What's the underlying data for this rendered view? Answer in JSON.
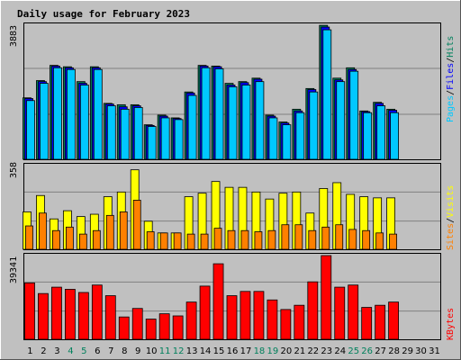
{
  "page": {
    "title": "Daily usage for February 2023"
  },
  "colors": {
    "title": "#0000cc",
    "hits": "#00805c",
    "files": "#0000ff",
    "pages": "#00c8ff",
    "visits": "#ffff00",
    "sites": "#ff8000",
    "kbytes": "#ff0000",
    "plot_bg": "#c0c0c0",
    "weekend_day": "#00805c",
    "weekday": "#000000"
  },
  "legend": {
    "top": [
      "Pages",
      "/",
      "Files",
      "/",
      "Hits"
    ],
    "middle": [
      "Sites",
      "/",
      "Visits"
    ],
    "bottom": [
      "KBytes"
    ]
  },
  "chart_data": [
    {
      "type": "bar",
      "title": "Daily usage for February 2023",
      "ymax_label": "3883",
      "ylim": [
        0,
        3883
      ],
      "categories": [
        "1",
        "2",
        "3",
        "4",
        "5",
        "6",
        "7",
        "8",
        "9",
        "10",
        "11",
        "12",
        "13",
        "14",
        "15",
        "16",
        "17",
        "18",
        "19",
        "20",
        "21",
        "22",
        "23",
        "24",
        "25",
        "26",
        "27",
        "28",
        "29",
        "30",
        "31"
      ],
      "series": [
        {
          "name": "Hits",
          "values": [
            1780,
            2280,
            2720,
            2680,
            2250,
            2680,
            1620,
            1580,
            1580,
            1000,
            1280,
            1200,
            1950,
            2720,
            2700,
            2200,
            2250,
            2350,
            1280,
            1080,
            1450,
            2050,
            3880,
            2350,
            2650,
            1400,
            1650,
            1450,
            null,
            null,
            null
          ]
        },
        {
          "name": "Files",
          "values": [
            1760,
            2250,
            2700,
            2650,
            2200,
            2650,
            1600,
            1520,
            1550,
            980,
            1250,
            1180,
            1920,
            2700,
            2680,
            2150,
            2220,
            2320,
            1250,
            1050,
            1400,
            2020,
            3830,
            2300,
            2600,
            1380,
            1620,
            1420,
            null,
            null,
            null
          ]
        },
        {
          "name": "Pages",
          "values": [
            1700,
            2200,
            2650,
            2600,
            2150,
            2600,
            1550,
            1450,
            1500,
            950,
            1200,
            1150,
            1850,
            2650,
            2620,
            2100,
            2150,
            2250,
            1200,
            1000,
            1350,
            1950,
            3750,
            2250,
            2550,
            1350,
            1550,
            1350,
            null,
            null,
            null
          ]
        }
      ]
    },
    {
      "type": "bar",
      "ymax_label": "358",
      "ylim": [
        0,
        358
      ],
      "categories": [
        "1",
        "2",
        "3",
        "4",
        "5",
        "6",
        "7",
        "8",
        "9",
        "10",
        "11",
        "12",
        "13",
        "14",
        "15",
        "16",
        "17",
        "18",
        "19",
        "20",
        "21",
        "22",
        "23",
        "24",
        "25",
        "26",
        "27",
        "28",
        "29",
        "30",
        "31"
      ],
      "series": [
        {
          "name": "Visits",
          "values": [
            160,
            230,
            130,
            165,
            140,
            150,
            225,
            245,
            340,
            120,
            70,
            70,
            225,
            240,
            290,
            265,
            265,
            245,
            215,
            240,
            245,
            155,
            260,
            285,
            235,
            225,
            220,
            220,
            null,
            null,
            null
          ]
        },
        {
          "name": "Sites",
          "values": [
            100,
            155,
            80,
            95,
            65,
            80,
            145,
            160,
            210,
            75,
            70,
            70,
            65,
            65,
            90,
            80,
            80,
            75,
            80,
            105,
            105,
            80,
            95,
            105,
            85,
            80,
            70,
            65,
            null,
            null,
            null
          ]
        }
      ]
    },
    {
      "type": "bar",
      "ymax_label": "39341",
      "ylim": [
        0,
        39341
      ],
      "categories": [
        "1",
        "2",
        "3",
        "4",
        "5",
        "6",
        "7",
        "8",
        "9",
        "10",
        "11",
        "12",
        "13",
        "14",
        "15",
        "16",
        "17",
        "18",
        "19",
        "20",
        "21",
        "22",
        "23",
        "24",
        "25",
        "26",
        "27",
        "28",
        "29",
        "30",
        "31"
      ],
      "series": [
        {
          "name": "KBytes",
          "values": [
            26500,
            21500,
            24500,
            23500,
            22000,
            25500,
            20500,
            10500,
            14500,
            9500,
            12000,
            11000,
            17500,
            25000,
            35500,
            20500,
            22500,
            22500,
            18500,
            14000,
            16000,
            27000,
            39341,
            24500,
            25500,
            15000,
            16000,
            17500,
            null,
            null,
            null
          ]
        }
      ]
    }
  ]
}
